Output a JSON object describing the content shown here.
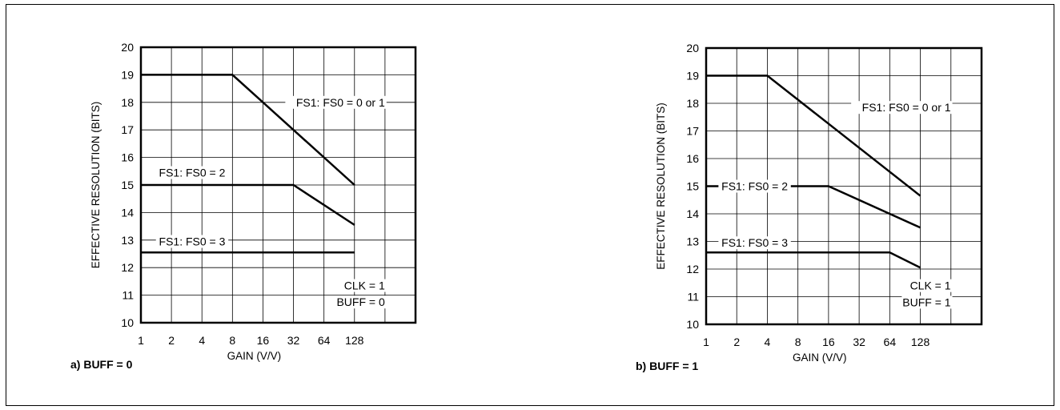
{
  "chart_data": [
    {
      "type": "line",
      "caption": "a) BUFF = 0",
      "xlabel": "GAIN (V/V)",
      "ylabel": "EFFECTIVE RESOLUTION (BITS)",
      "x_scale": "log2",
      "x_ticks": [
        "1",
        "2",
        "4",
        "8",
        "16",
        "32",
        "64",
        "128"
      ],
      "x_ticks_values": [
        1,
        2,
        4,
        8,
        16,
        32,
        64,
        128
      ],
      "y_ticks": [
        "10",
        "11",
        "12",
        "13",
        "14",
        "15",
        "16",
        "17",
        "18",
        "19",
        "20"
      ],
      "ylim": [
        10,
        20
      ],
      "xlim": [
        1,
        512
      ],
      "grid": true,
      "series": [
        {
          "name": "FS1: FS0 = 0 or 1",
          "x": [
            1,
            8,
            128
          ],
          "y": [
            19,
            19,
            15
          ]
        },
        {
          "name": "FS1: FS0 = 2",
          "x": [
            1,
            32,
            128
          ],
          "y": [
            15,
            15,
            13.55
          ]
        },
        {
          "name": "FS1: FS0 = 3",
          "x": [
            1,
            128
          ],
          "y": [
            12.55,
            12.55
          ]
        }
      ],
      "annotations": [
        "CLK = 1",
        "BUFF = 0"
      ]
    },
    {
      "type": "line",
      "caption": "b) BUFF = 1",
      "xlabel": "GAIN (V/V)",
      "ylabel": "EFFECTIVE RESOLUTION (BITS)",
      "x_scale": "log2",
      "x_ticks": [
        "1",
        "2",
        "4",
        "8",
        "16",
        "32",
        "64",
        "128"
      ],
      "x_ticks_values": [
        1,
        2,
        4,
        8,
        16,
        32,
        64,
        128
      ],
      "y_ticks": [
        "10",
        "11",
        "12",
        "13",
        "14",
        "15",
        "16",
        "17",
        "18",
        "19",
        "20"
      ],
      "ylim": [
        10,
        20
      ],
      "xlim": [
        1,
        512
      ],
      "grid": true,
      "series": [
        {
          "name": "FS1: FS0 = 0 or 1",
          "x": [
            1,
            4,
            128
          ],
          "y": [
            19,
            19,
            14.65
          ]
        },
        {
          "name": "FS1: FS0 = 2",
          "x": [
            1,
            16,
            128
          ],
          "y": [
            15,
            15,
            13.5
          ]
        },
        {
          "name": "FS1: FS0 = 3",
          "x": [
            1,
            64,
            128
          ],
          "y": [
            12.6,
            12.6,
            12.05
          ]
        }
      ],
      "annotations": [
        "CLK = 1",
        "BUFF = 1"
      ]
    }
  ]
}
